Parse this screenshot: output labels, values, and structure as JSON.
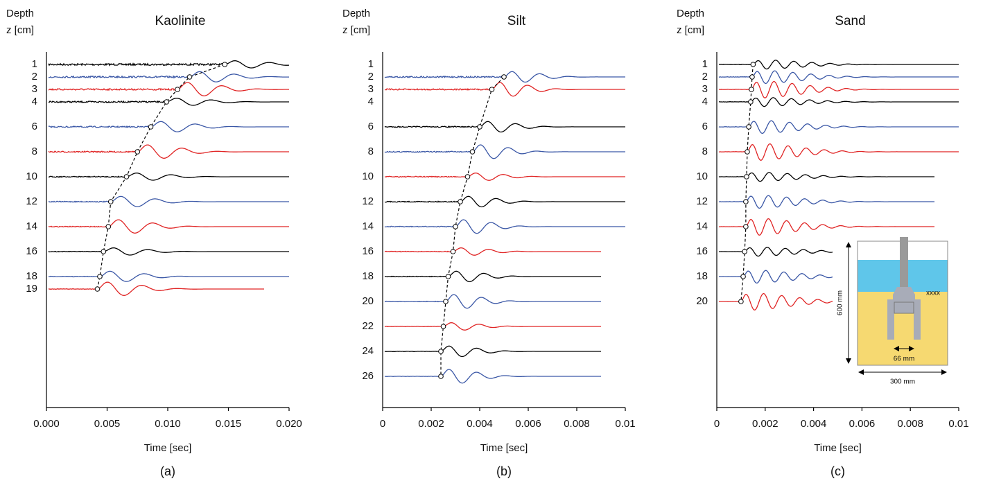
{
  "chart_data": [
    {
      "type": "waveform",
      "title": "Kaolinite",
      "ylabel": [
        "Depth",
        "z [cm]"
      ],
      "xlabel": "Time [sec]",
      "caption": "(a)",
      "xlim": [
        0,
        0.02
      ],
      "xticks": [
        {
          "value": 0,
          "label": "0.000"
        },
        {
          "value": 0.005,
          "label": "0.005"
        },
        {
          "value": 0.01,
          "label": "0.010"
        },
        {
          "value": 0.015,
          "label": "0.015"
        },
        {
          "value": 0.02,
          "label": "0.020"
        }
      ],
      "ylim": [
        0,
        28.5
      ],
      "series": [
        {
          "depth": 1,
          "color": "#000000",
          "arrival": 0.0147,
          "end": 0.02
        },
        {
          "depth": 2,
          "color": "#3a57a6",
          "arrival": 0.0118,
          "end": 0.02
        },
        {
          "depth": 3,
          "color": "#e02424",
          "arrival": 0.0108,
          "end": 0.02
        },
        {
          "depth": 4,
          "color": "#000000",
          "arrival": 0.0099,
          "end": 0.02
        },
        {
          "depth": 6,
          "color": "#3a57a6",
          "arrival": 0.0086,
          "end": 0.02
        },
        {
          "depth": 8,
          "color": "#e02424",
          "arrival": 0.0075,
          "end": 0.02
        },
        {
          "depth": 10,
          "color": "#000000",
          "arrival": 0.0066,
          "end": 0.02
        },
        {
          "depth": 12,
          "color": "#3a57a6",
          "arrival": 0.0053,
          "end": 0.02
        },
        {
          "depth": 14,
          "color": "#e02424",
          "arrival": 0.0051,
          "end": 0.02
        },
        {
          "depth": 16,
          "color": "#000000",
          "arrival": 0.0047,
          "end": 0.02
        },
        {
          "depth": 18,
          "color": "#3a57a6",
          "arrival": 0.0044,
          "end": 0.02
        },
        {
          "depth": 19,
          "color": "#e02424",
          "arrival": 0.0042,
          "end": 0.018
        }
      ]
    },
    {
      "type": "waveform",
      "title": "Silt",
      "ylabel": [
        "Depth",
        "z [cm]"
      ],
      "xlabel": "Time [sec]",
      "caption": "(b)",
      "xlim": [
        0,
        0.01
      ],
      "xticks": [
        0,
        0.002,
        0.004,
        0.006,
        0.008,
        0.01
      ],
      "ylim": [
        0,
        28.5
      ],
      "series": [
        {
          "depth": 1,
          "color": "#000000",
          "arrival": null,
          "end": null
        },
        {
          "depth": 2,
          "color": "#3a57a6",
          "arrival": 0.005,
          "end": 0.01
        },
        {
          "depth": 3,
          "color": "#e02424",
          "arrival": 0.0045,
          "end": 0.01
        },
        {
          "depth": 4,
          "color": "#000000",
          "arrival": null,
          "end": null
        },
        {
          "depth": 6,
          "color": "#000000",
          "arrival": 0.004,
          "end": 0.01
        },
        {
          "depth": 8,
          "color": "#3a57a6",
          "arrival": 0.0037,
          "end": 0.01
        },
        {
          "depth": 10,
          "color": "#e02424",
          "arrival": 0.0035,
          "end": 0.01
        },
        {
          "depth": 12,
          "color": "#000000",
          "arrival": 0.0032,
          "end": 0.01
        },
        {
          "depth": 14,
          "color": "#3a57a6",
          "arrival": 0.003,
          "end": 0.01
        },
        {
          "depth": 16,
          "color": "#e02424",
          "arrival": 0.0029,
          "end": 0.009
        },
        {
          "depth": 18,
          "color": "#000000",
          "arrival": 0.0027,
          "end": 0.009
        },
        {
          "depth": 20,
          "color": "#3a57a6",
          "arrival": 0.0026,
          "end": 0.009
        },
        {
          "depth": 22,
          "color": "#e02424",
          "arrival": 0.0025,
          "end": 0.009
        },
        {
          "depth": 24,
          "color": "#000000",
          "arrival": 0.0024,
          "end": 0.009
        },
        {
          "depth": 26,
          "color": "#3a57a6",
          "arrival": 0.0024,
          "end": 0.009
        }
      ]
    },
    {
      "type": "waveform",
      "title": "Sand",
      "ylabel": [
        "Depth",
        "z [cm]"
      ],
      "xlabel": "Time [sec]",
      "caption": "(c)",
      "xlim": [
        0,
        0.01
      ],
      "xticks": [
        0,
        0.002,
        0.004,
        0.006,
        0.008,
        0.01
      ],
      "ylim": [
        0,
        28.5
      ],
      "series": [
        {
          "depth": 1,
          "color": "#000000",
          "arrival": 0.0015,
          "end": 0.01
        },
        {
          "depth": 2,
          "color": "#3a57a6",
          "arrival": 0.00146,
          "end": 0.01
        },
        {
          "depth": 3,
          "color": "#e02424",
          "arrival": 0.00143,
          "end": 0.01
        },
        {
          "depth": 4,
          "color": "#000000",
          "arrival": 0.0014,
          "end": 0.01
        },
        {
          "depth": 6,
          "color": "#3a57a6",
          "arrival": 0.00132,
          "end": 0.01
        },
        {
          "depth": 8,
          "color": "#e02424",
          "arrival": 0.00126,
          "end": 0.01
        },
        {
          "depth": 10,
          "color": "#000000",
          "arrival": 0.00123,
          "end": 0.009
        },
        {
          "depth": 12,
          "color": "#3a57a6",
          "arrival": 0.0012,
          "end": 0.009
        },
        {
          "depth": 14,
          "color": "#e02424",
          "arrival": 0.0012,
          "end": 0.009
        },
        {
          "depth": 16,
          "color": "#000000",
          "arrival": 0.00115,
          "end": 0.0048
        },
        {
          "depth": 18,
          "color": "#3a57a6",
          "arrival": 0.00109,
          "end": 0.0048
        },
        {
          "depth": 20,
          "color": "#e02424",
          "arrival": 0.001,
          "end": 0.0048
        }
      ],
      "inset": {
        "height_label": "600 mm",
        "gap_label": "66 mm",
        "width_label": "300 mm"
      }
    }
  ]
}
